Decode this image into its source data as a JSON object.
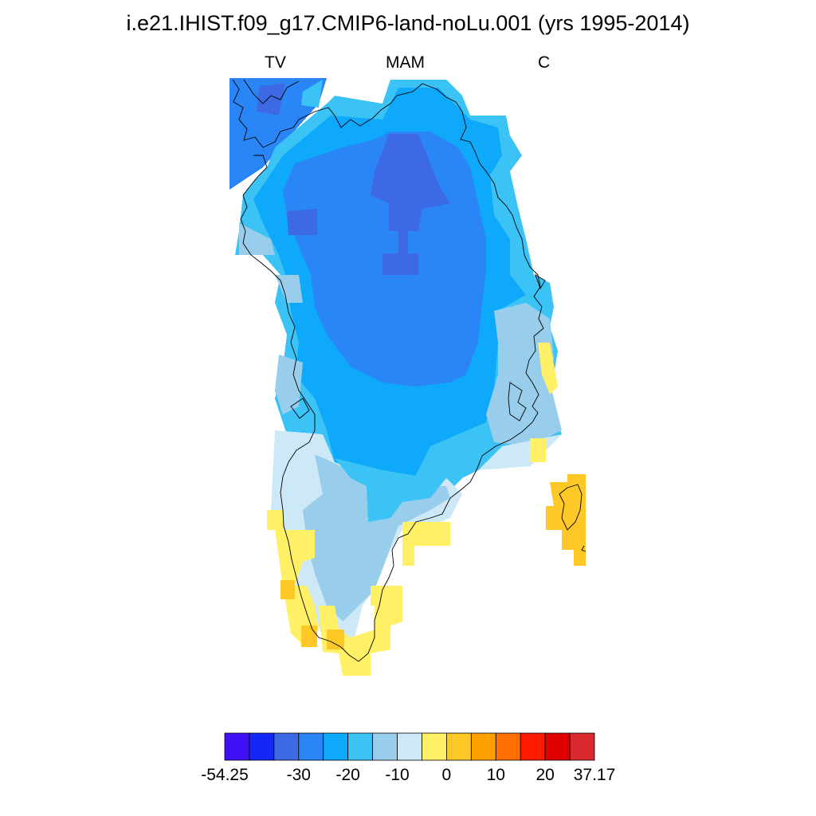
{
  "title": "i.e21.IHIST.f09_g17.CMIP6-land-noLu.001 (yrs 1995-2014)",
  "subtitle_left": "TV",
  "subtitle_center": "MAM",
  "subtitle_right": "C",
  "colorbar": {
    "colors": [
      "#4011f5",
      "#1327f5",
      "#3d6ae4",
      "#2a85f6",
      "#0fa9fb",
      "#3bc3f6",
      "#98cdeb",
      "#cde9f8",
      "#fff066",
      "#fec926",
      "#fe9f00",
      "#fe6e00",
      "#fe1a00",
      "#e10000",
      "#d9292f"
    ],
    "tick_labels": [
      "-54.25",
      "-30",
      "-20",
      "-10",
      "0",
      "10",
      "20",
      "37.17"
    ]
  }
}
